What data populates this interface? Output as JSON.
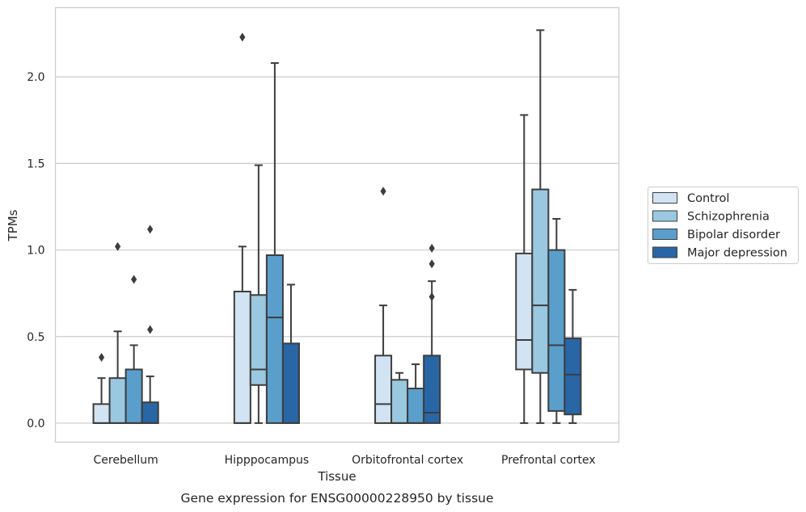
{
  "chart_data": {
    "type": "box",
    "caption": "Gene expression for ENSG00000228950 by tissue",
    "xlabel": "Tissue",
    "ylabel": "TPMs",
    "ylim": [
      -0.11,
      2.4
    ],
    "yticks": [
      0.0,
      0.5,
      1.0,
      1.5,
      2.0
    ],
    "ytick_labels": [
      "0.0",
      "0.5",
      "1.0",
      "1.5",
      "2.0"
    ],
    "grid": "horizontal",
    "legend_position": "right",
    "categories": [
      "Cerebellum",
      "Hipppocampus",
      "Orbitofrontal cortex",
      "Prefrontal cortex"
    ],
    "series": [
      {
        "name": "Control",
        "color": "#d2e3f3",
        "boxes": [
          {
            "whislo": 0.0,
            "q1": 0.0,
            "med": 0.0,
            "q3": 0.11,
            "whishi": 0.26,
            "fliers": [
              0.38
            ]
          },
          {
            "whislo": 0.0,
            "q1": 0.0,
            "med": 0.0,
            "q3": 0.76,
            "whishi": 1.02,
            "fliers": [
              2.23
            ]
          },
          {
            "whislo": 0.0,
            "q1": 0.0,
            "med": 0.11,
            "q3": 0.39,
            "whishi": 0.68,
            "fliers": [
              1.34
            ]
          },
          {
            "whislo": 0.0,
            "q1": 0.31,
            "med": 0.48,
            "q3": 0.98,
            "whishi": 1.78,
            "fliers": []
          }
        ]
      },
      {
        "name": "Schizophrenia",
        "color": "#9ac8e0",
        "boxes": [
          {
            "whislo": 0.0,
            "q1": 0.0,
            "med": 0.0,
            "q3": 0.26,
            "whishi": 0.53,
            "fliers": [
              1.02
            ]
          },
          {
            "whislo": 0.0,
            "q1": 0.22,
            "med": 0.31,
            "q3": 0.74,
            "whishi": 1.49,
            "fliers": []
          },
          {
            "whislo": 0.0,
            "q1": 0.0,
            "med": 0.0,
            "q3": 0.25,
            "whishi": 0.29,
            "fliers": []
          },
          {
            "whislo": 0.0,
            "q1": 0.29,
            "med": 0.68,
            "q3": 1.35,
            "whishi": 2.27,
            "fliers": []
          }
        ]
      },
      {
        "name": "Bipolar disorder",
        "color": "#5a9fcc",
        "boxes": [
          {
            "whislo": 0.0,
            "q1": 0.0,
            "med": 0.0,
            "q3": 0.31,
            "whishi": 0.45,
            "fliers": [
              0.83
            ]
          },
          {
            "whislo": 0.0,
            "q1": 0.0,
            "med": 0.61,
            "q3": 0.97,
            "whishi": 2.08,
            "fliers": []
          },
          {
            "whislo": 0.0,
            "q1": 0.0,
            "med": 0.0,
            "q3": 0.2,
            "whishi": 0.34,
            "fliers": []
          },
          {
            "whislo": 0.0,
            "q1": 0.07,
            "med": 0.45,
            "q3": 1.0,
            "whishi": 1.18,
            "fliers": []
          }
        ]
      },
      {
        "name": "Major depression",
        "color": "#2866a6",
        "boxes": [
          {
            "whislo": 0.0,
            "q1": 0.0,
            "med": 0.0,
            "q3": 0.12,
            "whishi": 0.27,
            "fliers": [
              0.54,
              1.12
            ]
          },
          {
            "whislo": 0.0,
            "q1": 0.0,
            "med": 0.0,
            "q3": 0.46,
            "whishi": 0.8,
            "fliers": []
          },
          {
            "whislo": 0.0,
            "q1": 0.0,
            "med": 0.06,
            "q3": 0.39,
            "whishi": 0.82,
            "fliers": [
              0.73,
              0.92,
              1.01
            ]
          },
          {
            "whislo": 0.0,
            "q1": 0.05,
            "med": 0.28,
            "q3": 0.49,
            "whishi": 0.77,
            "fliers": []
          }
        ]
      }
    ]
  }
}
